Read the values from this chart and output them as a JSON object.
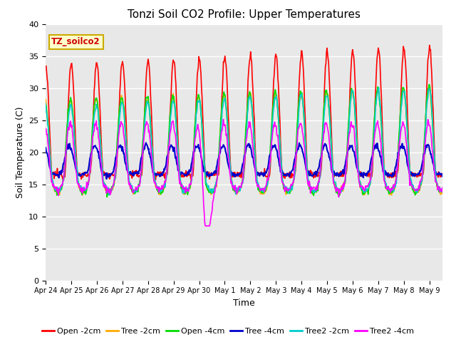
{
  "title": "Tonzi Soil CO2 Profile: Upper Temperatures",
  "xlabel": "Time",
  "ylabel": "Soil Temperature (C)",
  "annotation": "TZ_soilco2",
  "ylim": [
    0,
    40
  ],
  "yticks": [
    0,
    5,
    10,
    15,
    20,
    25,
    30,
    35,
    40
  ],
  "x_tick_labels": [
    "Apr 24",
    "Apr 25",
    "Apr 26",
    "Apr 27",
    "Apr 28",
    "Apr 29",
    "Apr 30",
    "May 1",
    "May 2",
    "May 3",
    "May 4",
    "May 5",
    "May 6",
    "May 7",
    "May 8",
    "May 9"
  ],
  "series_colors": [
    "#ff0000",
    "#ffaa00",
    "#00dd00",
    "#0000cc",
    "#00cccc",
    "#ff00ff"
  ],
  "series_labels": [
    "Open -2cm",
    "Tree -2cm",
    "Open -4cm",
    "Tree -4cm",
    "Tree2 -2cm",
    "Tree2 -4cm"
  ],
  "background_color": "#e8e8e8",
  "title_fontsize": 11,
  "axis_fontsize": 9,
  "tick_fontsize": 8,
  "legend_fontsize": 9
}
